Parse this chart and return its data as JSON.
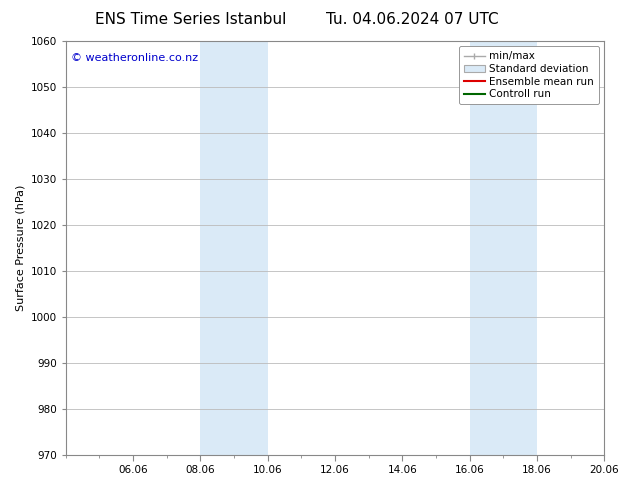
{
  "title_left": "ENS Time Series Istanbul",
  "title_right": "Tu. 04.06.2024 07 UTC",
  "ylabel": "Surface Pressure (hPa)",
  "ylim": [
    970,
    1060
  ],
  "yticks": [
    970,
    980,
    990,
    1000,
    1010,
    1020,
    1030,
    1040,
    1050,
    1060
  ],
  "xlim": [
    0,
    16
  ],
  "xtick_labels": [
    "06.06",
    "08.06",
    "10.06",
    "12.06",
    "14.06",
    "16.06",
    "18.06",
    "20.06"
  ],
  "xtick_positions": [
    2,
    4,
    6,
    8,
    10,
    12,
    14,
    16
  ],
  "shaded_bands": [
    {
      "x_start": 4,
      "x_end": 6
    },
    {
      "x_start": 12,
      "x_end": 14
    }
  ],
  "shaded_color": "#daeaf7",
  "watermark_text": "© weatheronline.co.nz",
  "watermark_color": "#0000cc",
  "watermark_fontsize": 8,
  "background_color": "#ffffff",
  "grid_color": "#bbbbbb",
  "title_fontsize": 11,
  "axis_fontsize": 8,
  "tick_fontsize": 7.5,
  "legend_fontsize": 7.5
}
